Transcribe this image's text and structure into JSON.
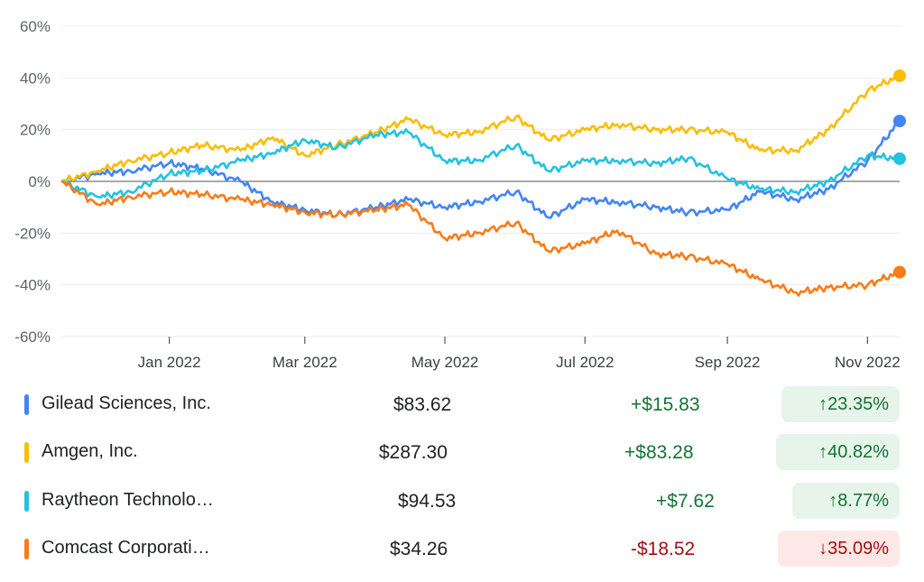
{
  "chart_data": {
    "type": "line",
    "y_ticks": [
      60,
      40,
      20,
      0,
      -20,
      -40,
      -60
    ],
    "y_tick_labels": [
      "60%",
      "40%",
      "20%",
      "0%",
      "-20%",
      "-40%",
      "-60%"
    ],
    "ylim": [
      -60,
      60
    ],
    "x_range": [
      "2021-11-15",
      "2022-11-15"
    ],
    "x_ticks": [
      "2022-01-01",
      "2022-03-01",
      "2022-05-01",
      "2022-07-01",
      "2022-09-01",
      "2022-11-01"
    ],
    "x_tick_labels": [
      "Jan 2022",
      "Mar 2022",
      "May 2022",
      "Jul 2022",
      "Sep 2022",
      "Nov 2022"
    ],
    "series": [
      {
        "name": "Gilead Sciences, Inc.",
        "color": "#4285f4",
        "x": [
          "2021-11-15",
          "2021-12-01",
          "2021-12-15",
          "2022-01-01",
          "2022-01-15",
          "2022-02-01",
          "2022-02-15",
          "2022-03-01",
          "2022-03-15",
          "2022-04-01",
          "2022-04-15",
          "2022-05-01",
          "2022-05-15",
          "2022-06-01",
          "2022-06-15",
          "2022-07-01",
          "2022-07-15",
          "2022-08-01",
          "2022-08-15",
          "2022-09-01",
          "2022-09-15",
          "2022-10-01",
          "2022-10-15",
          "2022-11-01",
          "2022-11-15"
        ],
        "values": [
          0,
          3,
          4,
          7,
          5,
          0,
          -8,
          -11,
          -13,
          -10,
          -7,
          -10,
          -8,
          -4,
          -14,
          -7,
          -8,
          -10,
          -12,
          -11,
          -4,
          -7,
          -3,
          8,
          23.35
        ]
      },
      {
        "name": "Amgen, Inc.",
        "color": "#fbbc04",
        "x": [
          "2021-11-15",
          "2021-12-01",
          "2021-12-15",
          "2022-01-01",
          "2022-01-15",
          "2022-02-01",
          "2022-02-15",
          "2022-03-01",
          "2022-03-15",
          "2022-04-01",
          "2022-04-15",
          "2022-05-01",
          "2022-05-15",
          "2022-06-01",
          "2022-06-15",
          "2022-07-01",
          "2022-07-15",
          "2022-08-01",
          "2022-08-15",
          "2022-09-01",
          "2022-09-15",
          "2022-10-01",
          "2022-10-15",
          "2022-11-01",
          "2022-11-15"
        ],
        "values": [
          0,
          4,
          8,
          11,
          14,
          12,
          17,
          10,
          14,
          19,
          24,
          18,
          19,
          25,
          16,
          20,
          22,
          20,
          20,
          19,
          12,
          12,
          20,
          35,
          40.82
        ]
      },
      {
        "name": "Raytheon Technolo…",
        "color": "#24c1e0",
        "x": [
          "2021-11-15",
          "2021-12-01",
          "2021-12-15",
          "2022-01-01",
          "2022-01-15",
          "2022-02-01",
          "2022-02-15",
          "2022-03-01",
          "2022-03-15",
          "2022-04-01",
          "2022-04-15",
          "2022-05-01",
          "2022-05-15",
          "2022-06-01",
          "2022-06-15",
          "2022-07-01",
          "2022-07-15",
          "2022-08-01",
          "2022-08-15",
          "2022-09-01",
          "2022-09-15",
          "2022-10-01",
          "2022-10-15",
          "2022-11-01",
          "2022-11-15"
        ],
        "values": [
          0,
          -6,
          -4,
          3,
          4,
          8,
          11,
          16,
          13,
          18,
          19,
          8,
          8,
          14,
          4,
          8,
          8,
          7,
          9,
          1,
          -3,
          -4,
          0,
          10,
          8.77
        ]
      },
      {
        "name": "Comcast Corporati…",
        "color": "#fa7b17",
        "x": [
          "2021-11-15",
          "2021-12-01",
          "2021-12-15",
          "2022-01-01",
          "2022-01-15",
          "2022-02-01",
          "2022-02-15",
          "2022-03-01",
          "2022-03-15",
          "2022-04-01",
          "2022-04-15",
          "2022-05-01",
          "2022-05-15",
          "2022-06-01",
          "2022-06-15",
          "2022-07-01",
          "2022-07-15",
          "2022-08-01",
          "2022-08-15",
          "2022-09-01",
          "2022-09-15",
          "2022-10-01",
          "2022-10-15",
          "2022-11-01",
          "2022-11-15"
        ],
        "values": [
          0,
          -9,
          -6,
          -4,
          -5,
          -7,
          -9,
          -12,
          -13,
          -11,
          -9,
          -22,
          -20,
          -16,
          -27,
          -24,
          -19,
          -28,
          -29,
          -32,
          -38,
          -43,
          -41,
          -40,
          -35.09
        ]
      }
    ]
  },
  "legend": [
    {
      "name": "Gilead Sciences, Inc.",
      "price": "$83.62",
      "change": "+$15.83",
      "percent": "23.35%",
      "direction": "up",
      "color": "#4285f4"
    },
    {
      "name": "Amgen, Inc.",
      "price": "$287.30",
      "change": "+$83.28",
      "percent": "40.82%",
      "direction": "up",
      "color": "#fbbc04"
    },
    {
      "name": "Raytheon Technolo…",
      "price": "$94.53",
      "change": "+$7.62",
      "percent": "8.77%",
      "direction": "up",
      "color": "#24c1e0"
    },
    {
      "name": "Comcast Corporati…",
      "price": "$34.26",
      "change": "-$18.52",
      "percent": "35.09%",
      "direction": "down",
      "color": "#fa7b17"
    }
  ]
}
